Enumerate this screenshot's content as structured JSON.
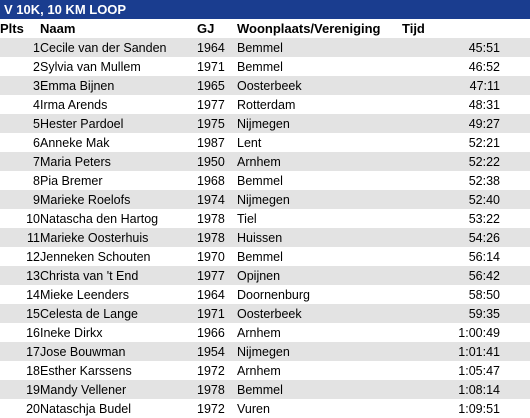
{
  "title": "V 10K, 10 KM LOOP",
  "columns": {
    "plts": "Plts",
    "naam": "Naam",
    "gj": "GJ",
    "woonplaats": "Woonplaats/Vereniging",
    "tijd": "Tijd"
  },
  "rows": [
    {
      "plts": "1",
      "naam": "Cecile van der Sanden",
      "gj": "1964",
      "woonplaats": "Bemmel",
      "tijd": "45:51"
    },
    {
      "plts": "2",
      "naam": "Sylvia van Mullem",
      "gj": "1971",
      "woonplaats": "Bemmel",
      "tijd": "46:52"
    },
    {
      "plts": "3",
      "naam": "Emma Bijnen",
      "gj": "1965",
      "woonplaats": "Oosterbeek",
      "tijd": "47:11"
    },
    {
      "plts": "4",
      "naam": "Irma Arends",
      "gj": "1977",
      "woonplaats": "Rotterdam",
      "tijd": "48:31"
    },
    {
      "plts": "5",
      "naam": "Hester Pardoel",
      "gj": "1975",
      "woonplaats": "Nijmegen",
      "tijd": "49:27"
    },
    {
      "plts": "6",
      "naam": "Anneke Mak",
      "gj": "1987",
      "woonplaats": "Lent",
      "tijd": "52:21"
    },
    {
      "plts": "7",
      "naam": "Maria Peters",
      "gj": "1950",
      "woonplaats": "Arnhem",
      "tijd": "52:22"
    },
    {
      "plts": "8",
      "naam": "Pia Bremer",
      "gj": "1968",
      "woonplaats": "Bemmel",
      "tijd": "52:38"
    },
    {
      "plts": "9",
      "naam": "Marieke Roelofs",
      "gj": "1974",
      "woonplaats": "Nijmegen",
      "tijd": "52:40"
    },
    {
      "plts": "10",
      "naam": "Natascha den Hartog",
      "gj": "1978",
      "woonplaats": "Tiel",
      "tijd": "53:22"
    },
    {
      "plts": "11",
      "naam": "Marieke Oosterhuis",
      "gj": "1978",
      "woonplaats": "Huissen",
      "tijd": "54:26"
    },
    {
      "plts": "12",
      "naam": "Jenneken Schouten",
      "gj": "1970",
      "woonplaats": "Bemmel",
      "tijd": "56:14"
    },
    {
      "plts": "13",
      "naam": "Christa van 't End",
      "gj": "1977",
      "woonplaats": "Opijnen",
      "tijd": "56:42"
    },
    {
      "plts": "14",
      "naam": "Mieke Leenders",
      "gj": "1964",
      "woonplaats": "Doornenburg",
      "tijd": "58:50"
    },
    {
      "plts": "15",
      "naam": "Celesta de Lange",
      "gj": "1971",
      "woonplaats": "Oosterbeek",
      "tijd": "59:35"
    },
    {
      "plts": "16",
      "naam": "Ineke Dirkx",
      "gj": "1966",
      "woonplaats": "Arnhem",
      "tijd": "1:00:49"
    },
    {
      "plts": "17",
      "naam": "Jose Bouwman",
      "gj": "1954",
      "woonplaats": "Nijmegen",
      "tijd": "1:01:41"
    },
    {
      "plts": "18",
      "naam": "Esther Karssens",
      "gj": "1972",
      "woonplaats": "Arnhem",
      "tijd": "1:05:47"
    },
    {
      "plts": "19",
      "naam": "Mandy Vellener",
      "gj": "1978",
      "woonplaats": "Bemmel",
      "tijd": "1:08:14"
    },
    {
      "plts": "20",
      "naam": "Nataschja Budel",
      "gj": "1972",
      "woonplaats": "Vuren",
      "tijd": "1:09:51"
    }
  ]
}
